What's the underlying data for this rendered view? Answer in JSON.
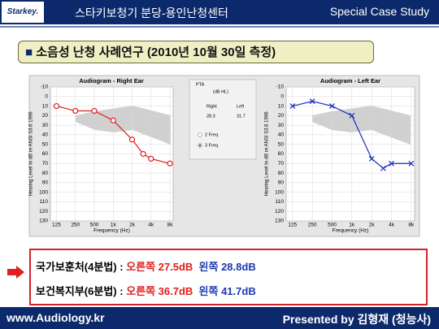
{
  "header": {
    "logo": "Starkey.",
    "title": "스타키보청기 분당-용인난청센터",
    "right": "Special Case Study"
  },
  "slide_title": "소음성 난청 사례연구 (2010년 10월 30일 측정)",
  "chart_data": [
    {
      "type": "line",
      "title": "Audiogram - Right Ear",
      "xlabel": "Frequency (Hz)",
      "ylabel": "Hearing Level In dB re ANSI S3.6 1996",
      "x": [
        125,
        250,
        500,
        1000,
        2000,
        3000,
        4000,
        8000
      ],
      "log_x": true,
      "y_inverted": true,
      "grid": true,
      "xlim": [
        100,
        9000
      ],
      "xticks": [
        125,
        250,
        500,
        {
          "value": 1000,
          "label": "1k"
        },
        {
          "value": 2000,
          "label": "2k"
        },
        {
          "value": 4000,
          "label": "4k"
        },
        {
          "value": 8000,
          "label": "8k"
        }
      ],
      "ylim": [
        -10,
        130
      ],
      "yticks": [
        -10,
        0,
        10,
        20,
        30,
        40,
        50,
        60,
        70,
        80,
        90,
        100,
        110,
        120,
        130
      ],
      "series": [
        {
          "color": "#e0201c",
          "marker": "o",
          "values": [
            10,
            15,
            15,
            25,
            45,
            60,
            65,
            70
          ]
        }
      ]
    },
    {
      "type": "line",
      "title": "Audiogram - Left Ear",
      "xlabel": "Frequency (Hz)",
      "ylabel": "Hearing Level In dB re ANSI S3.6 1996",
      "x": [
        125,
        250,
        500,
        1000,
        2000,
        3000,
        4000,
        8000
      ],
      "log_x": true,
      "y_inverted": true,
      "grid": true,
      "xlim": [
        100,
        9000
      ],
      "xticks": [
        125,
        250,
        500,
        {
          "value": 1000,
          "label": "1k"
        },
        {
          "value": 2000,
          "label": "2k"
        },
        {
          "value": 4000,
          "label": "4k"
        },
        {
          "value": 8000,
          "label": "8k"
        }
      ],
      "ylim": [
        -10,
        130
      ],
      "yticks": [
        -10,
        0,
        10,
        20,
        30,
        40,
        50,
        60,
        70,
        80,
        90,
        100,
        110,
        120,
        130
      ],
      "series": [
        {
          "color": "#1a2fc0",
          "marker": "x",
          "values": [
            10,
            5,
            10,
            20,
            65,
            75,
            70,
            70
          ]
        }
      ]
    }
  ],
  "pta": {
    "title": "PTA",
    "unit": "(dB HL)",
    "right_label": "Right",
    "left_label": "Left",
    "right_value": "28.3",
    "left_value": "31.7",
    "option1": "2 Freq.",
    "option2": "3 Freq."
  },
  "results": [
    {
      "label": "국가보훈처(4분법) :",
      "right": "오른쪽 27.5dB",
      "left": "왼쪽 28.8dB"
    },
    {
      "label": "보건복지부(6분법) :",
      "right": "오른쪽 36.7dB",
      "left": "왼쪽 41.7dB"
    }
  ],
  "footer": {
    "left": "www.Audiology.kr",
    "right": "Presented by 김형재 (청능사)"
  }
}
